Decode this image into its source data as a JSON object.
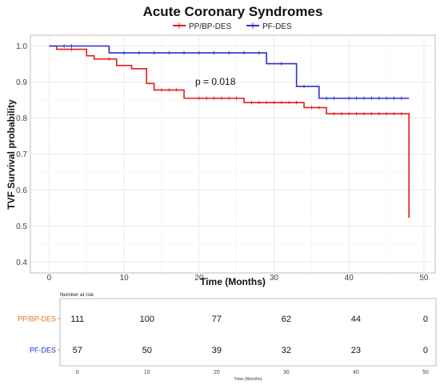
{
  "chart_data": {
    "type": "line",
    "subtype": "kaplan-meier",
    "title": "Acute Coronary Syndromes",
    "xlabel": "Time (Months)",
    "ylabel": "TVF Survival probability",
    "xlim": [
      -2.5,
      51.5
    ],
    "ylim": [
      0.37,
      1.03
    ],
    "x_ticks": [
      0,
      10,
      20,
      30,
      40,
      50
    ],
    "y_ticks": [
      0.4,
      0.5,
      0.6,
      0.7,
      0.8,
      0.9,
      1.0
    ],
    "y_tick_labels": [
      "0.4",
      "0.5",
      "0.6",
      "0.7",
      "0.8",
      "0.9",
      "1.0"
    ],
    "grid": true,
    "legend_position": "top-center",
    "annotation": "p = 0.018",
    "series": [
      {
        "name": "PP/BP-DES",
        "color": "#e41a1c",
        "steps": [
          [
            0,
            1.0
          ],
          [
            1,
            0.991
          ],
          [
            5,
            0.973
          ],
          [
            6,
            0.964
          ],
          [
            9,
            0.946
          ],
          [
            11,
            0.937
          ],
          [
            13,
            0.896
          ],
          [
            14,
            0.878
          ],
          [
            18,
            0.855
          ],
          [
            26,
            0.843
          ],
          [
            34,
            0.829
          ],
          [
            37,
            0.812
          ],
          [
            48,
            0.523
          ]
        ],
        "end": 48,
        "censor_times": [
          3,
          8,
          15,
          16,
          17,
          20,
          21,
          22,
          23,
          24,
          25,
          27,
          28,
          29,
          30,
          31,
          32,
          33,
          35,
          36,
          38,
          39,
          40,
          41,
          42,
          43,
          44,
          45,
          46,
          47
        ]
      },
      {
        "name": "PF-DES",
        "color": "#2a2fcf",
        "steps": [
          [
            0,
            1.0
          ],
          [
            8,
            0.981
          ],
          [
            29,
            0.951
          ],
          [
            33,
            0.888
          ],
          [
            36,
            0.855
          ]
        ],
        "end": 48,
        "censor_times": [
          2,
          3,
          10,
          12,
          14,
          16,
          18,
          20,
          22,
          24,
          26,
          28,
          31,
          34,
          37,
          38,
          40,
          41,
          42,
          43,
          44,
          45,
          46,
          47
        ]
      }
    ],
    "risk_table": {
      "title": "Number at risk",
      "xlabel": "Time (Months)",
      "x_ticks": [
        0,
        10,
        20,
        30,
        40,
        50
      ],
      "rows": [
        {
          "name": "PP/BP-DES",
          "color": "#e8731a",
          "values": [
            111,
            100,
            77,
            62,
            44,
            0
          ]
        },
        {
          "name": "PF-DES",
          "color": "#2a2fcf",
          "values": [
            57,
            50,
            39,
            32,
            23,
            0
          ]
        }
      ]
    }
  }
}
